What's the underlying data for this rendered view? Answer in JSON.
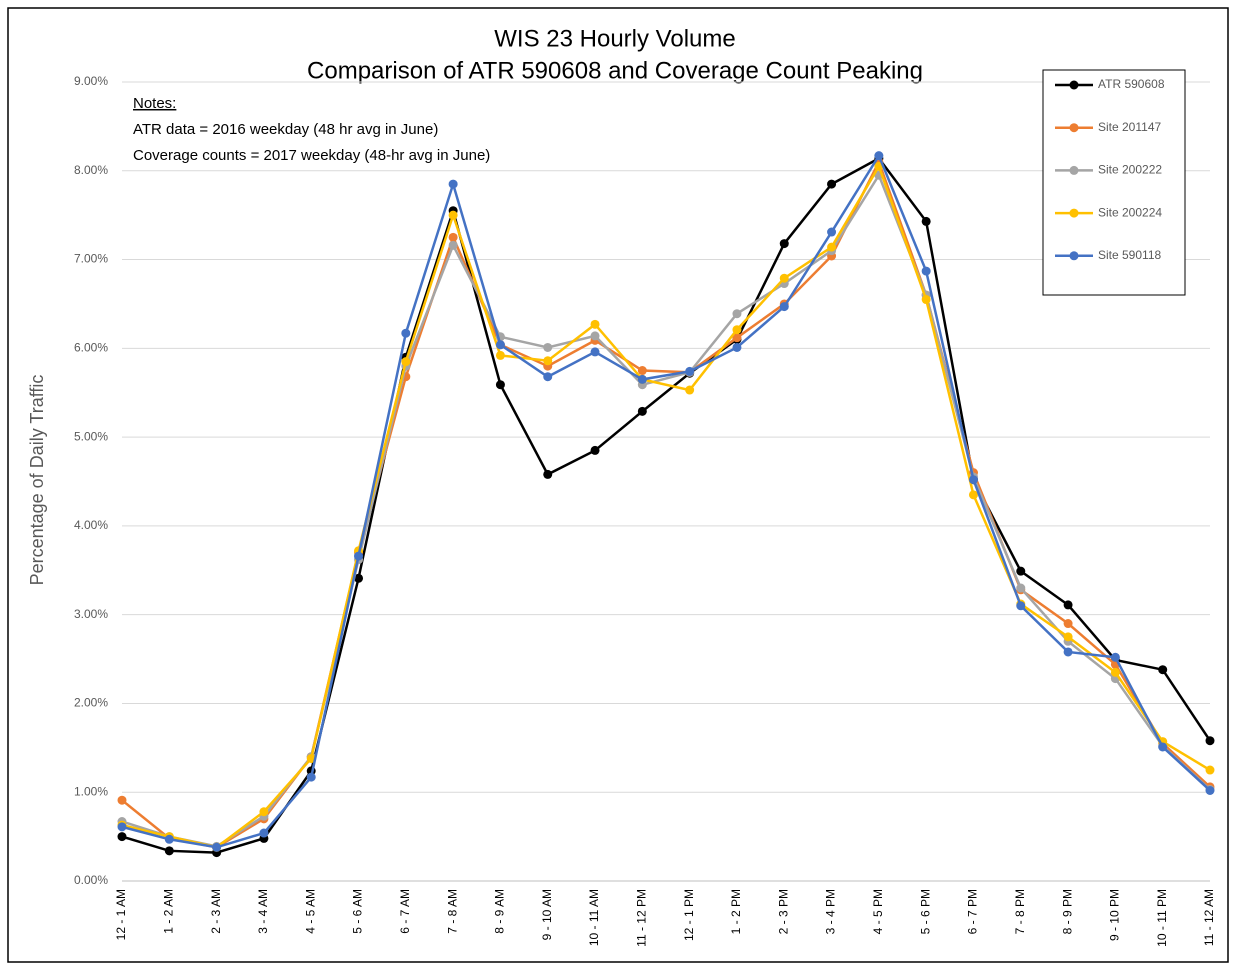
{
  "chart_data": {
    "type": "line",
    "title": "WIS 23 Hourly Volume",
    "subtitle": "Comparison of ATR 590608 and Coverage Count Peaking",
    "y_label": "Percentage of Daily Traffic",
    "annotations": [
      "Notes:",
      "ATR data = 2016 weekday (48 hr avg in June)",
      "Coverage counts = 2017 weekday (48-hr avg in June)"
    ],
    "categories": [
      "12 - 1 AM",
      "1 - 2 AM",
      "2 - 3 AM",
      "3 - 4 AM",
      "4 - 5 AM",
      "5 - 6 AM",
      "6 - 7 AM",
      "7 - 8 AM",
      "8 - 9 AM",
      "9 - 10 AM",
      "10 - 11 AM",
      "11 - 12 PM",
      "12 - 1 PM",
      "1 - 2 PM",
      "2 - 3 PM",
      "3 - 4 PM",
      "4 - 5 PM",
      "5 - 6 PM",
      "6 - 7 PM",
      "7 - 8 PM",
      "8 - 9 PM",
      "9 - 10 PM",
      "10 - 11 PM",
      "11 - 12 AM"
    ],
    "series": [
      {
        "name": "ATR 590608",
        "color": "#000000",
        "values": [
          0.5,
          0.34,
          0.32,
          0.48,
          1.24,
          3.41,
          5.9,
          7.55,
          5.59,
          4.58,
          4.85,
          5.29,
          5.72,
          6.1,
          7.18,
          7.85,
          8.14,
          7.43,
          4.52,
          3.49,
          3.11,
          2.49,
          2.38,
          1.58
        ]
      },
      {
        "name": "Site 201147",
        "color": "#ed7d31",
        "values": [
          0.91,
          0.48,
          0.38,
          0.7,
          1.4,
          3.7,
          5.68,
          7.25,
          6.04,
          5.8,
          6.09,
          5.75,
          5.73,
          6.12,
          6.5,
          7.04,
          8.1,
          6.6,
          4.6,
          3.28,
          2.9,
          2.44,
          1.55,
          1.06
        ]
      },
      {
        "name": "Site 200222",
        "color": "#a5a5a5",
        "values": [
          0.67,
          0.5,
          0.39,
          0.73,
          1.4,
          3.62,
          5.8,
          7.16,
          6.13,
          6.01,
          6.14,
          5.59,
          5.73,
          6.39,
          6.73,
          7.1,
          7.95,
          6.6,
          4.55,
          3.3,
          2.7,
          2.28,
          1.52,
          1.03
        ]
      },
      {
        "name": "Site 200224",
        "color": "#ffc000",
        "values": [
          0.63,
          0.5,
          0.38,
          0.78,
          1.38,
          3.72,
          5.85,
          7.5,
          5.92,
          5.86,
          6.27,
          5.65,
          5.53,
          6.21,
          6.79,
          7.14,
          8.05,
          6.55,
          4.35,
          3.12,
          2.75,
          2.35,
          1.57,
          1.25
        ]
      },
      {
        "name": "Site 590118",
        "color": "#4472c4",
        "values": [
          0.61,
          0.47,
          0.38,
          0.54,
          1.17,
          3.66,
          6.17,
          7.85,
          6.04,
          5.68,
          5.96,
          5.65,
          5.74,
          6.01,
          6.47,
          7.31,
          8.17,
          6.87,
          4.52,
          3.1,
          2.58,
          2.52,
          1.51,
          1.02
        ]
      }
    ],
    "ylim": [
      0,
      9
    ],
    "yticks": [
      {
        "value": 0,
        "label": "0.00%"
      },
      {
        "value": 1,
        "label": "1.00%"
      },
      {
        "value": 2,
        "label": "2.00%"
      },
      {
        "value": 3,
        "label": "3.00%"
      },
      {
        "value": 4,
        "label": "4.00%"
      },
      {
        "value": 5,
        "label": "5.00%"
      },
      {
        "value": 6,
        "label": "6.00%"
      },
      {
        "value": 7,
        "label": "7.00%"
      },
      {
        "value": 8,
        "label": "8.00%"
      },
      {
        "value": 9,
        "label": "9.00%"
      }
    ],
    "grid": true,
    "legend": "upper right"
  }
}
